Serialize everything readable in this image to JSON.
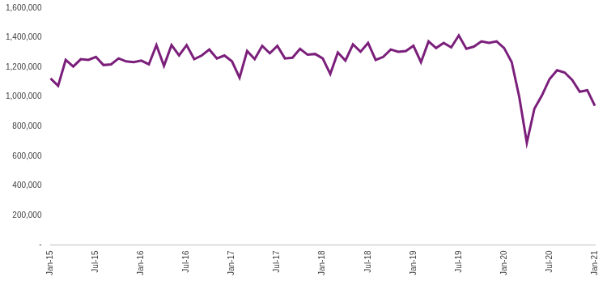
{
  "chart_data": {
    "type": "line",
    "categories": [
      "Jan-15",
      null,
      null,
      null,
      null,
      null,
      "Jul-15",
      null,
      null,
      null,
      null,
      null,
      "Jan-16",
      null,
      null,
      null,
      null,
      null,
      "Jul-16",
      null,
      null,
      null,
      null,
      null,
      "Jan-17",
      null,
      null,
      null,
      null,
      null,
      "Jul-17",
      null,
      null,
      null,
      null,
      null,
      "Jan-18",
      null,
      null,
      null,
      null,
      null,
      "Jul-18",
      null,
      null,
      null,
      null,
      null,
      "Jan-19",
      null,
      null,
      null,
      null,
      null,
      "Jul-19",
      null,
      null,
      null,
      null,
      null,
      "Jan-20",
      null,
      null,
      null,
      null,
      null,
      "Jul-20",
      null,
      null,
      null,
      null,
      null,
      "Jan-21"
    ],
    "values": [
      1125000,
      1075000,
      1250000,
      1205000,
      1255000,
      1250000,
      1270000,
      1215000,
      1220000,
      1260000,
      1240000,
      1235000,
      1245000,
      1220000,
      1350000,
      1210000,
      1350000,
      1280000,
      1350000,
      1255000,
      1280000,
      1320000,
      1260000,
      1280000,
      1240000,
      1130000,
      1310000,
      1255000,
      1345000,
      1295000,
      1345000,
      1260000,
      1265000,
      1325000,
      1285000,
      1290000,
      1260000,
      1155000,
      1300000,
      1245000,
      1355000,
      1305000,
      1365000,
      1250000,
      1270000,
      1320000,
      1305000,
      1310000,
      1345000,
      1235000,
      1375000,
      1330000,
      1365000,
      1335000,
      1415000,
      1325000,
      1340000,
      1375000,
      1365000,
      1375000,
      1330000,
      1235000,
      1000000,
      690000,
      920000,
      1010000,
      1120000,
      1180000,
      1165000,
      1115000,
      1035000,
      1045000,
      940000
    ],
    "color": "#7b1f7b",
    "ylim": [
      0,
      1600000
    ],
    "yticks": [
      {
        "value": 0,
        "label": "-"
      },
      {
        "value": 200000,
        "label": "200,000"
      },
      {
        "value": 400000,
        "label": "400,000"
      },
      {
        "value": 600000,
        "label": "600,000"
      },
      {
        "value": 800000,
        "label": "800,000"
      },
      {
        "value": 1000000,
        "label": "1,000,000"
      },
      {
        "value": 1200000,
        "label": "1,200,000"
      },
      {
        "value": 1400000,
        "label": "1,400,000"
      },
      {
        "value": 1600000,
        "label": "1,600,000"
      }
    ],
    "grid": false
  }
}
